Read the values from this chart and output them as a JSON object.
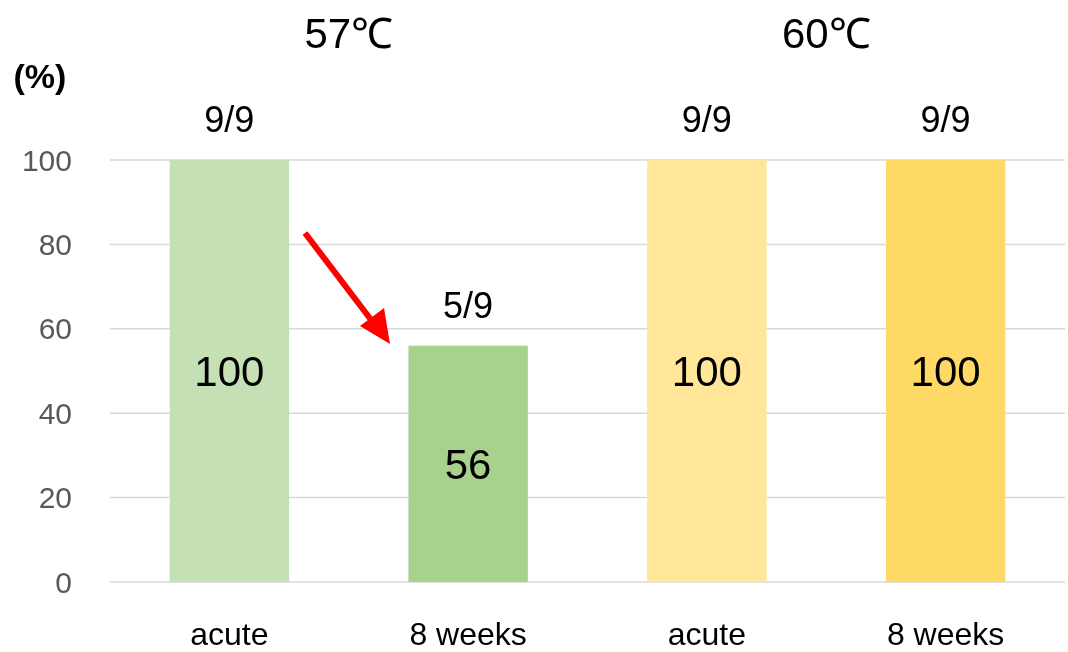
{
  "chart_data": {
    "type": "bar",
    "ylabel": "(%)",
    "categories": [
      "acute",
      "8 weeks",
      "acute",
      "8 weeks"
    ],
    "values": [
      100,
      56,
      100,
      100
    ],
    "colors": [
      "#c5e0b4",
      "#a9d18e",
      "#ffe699",
      "#ffd966"
    ],
    "ylim": [
      0,
      100
    ],
    "yticks": [
      0,
      20,
      40,
      60,
      80,
      100
    ],
    "grid": "y",
    "data_labels": true,
    "annotations": [
      "57℃",
      "60℃",
      "9/9",
      "5/9",
      "9/9",
      "9/9"
    ]
  }
}
